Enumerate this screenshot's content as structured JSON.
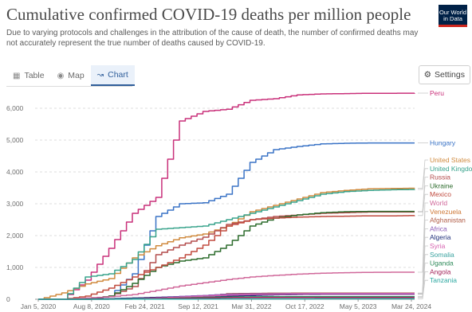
{
  "header": {
    "title": "Cumulative confirmed COVID-19 deaths per million people",
    "subtitle": "Due to varying protocols and challenges in the attribution of the cause of death, the number of confirmed deaths may not accurately represent the true number of deaths caused by COVID-19.",
    "logo": "Our World in Data"
  },
  "tabs": [
    {
      "label": "Table",
      "icon": "table-icon",
      "active": false
    },
    {
      "label": "Map",
      "icon": "globe-icon",
      "active": false
    },
    {
      "label": "Chart",
      "icon": "line-chart-icon",
      "active": true
    }
  ],
  "settings_label": "Settings",
  "chart_data": {
    "type": "line",
    "x_ticks": [
      "Jan 5, 2020",
      "Aug 8, 2020",
      "Feb 24, 2021",
      "Sep 12, 2021",
      "Mar 31, 2022",
      "Oct 17, 2022",
      "May 5, 2023",
      "Mar 24, 2024"
    ],
    "y_ticks": [
      0,
      1000,
      2000,
      3000,
      4000,
      5000,
      6000
    ],
    "ylim": [
      0,
      6600
    ],
    "grid": "horizontal dashed",
    "legend": "right, inline labels",
    "series": [
      {
        "name": "Peru",
        "color": "#c9307a",
        "values": [
          0,
          0,
          600,
          1600,
          2700,
          3200,
          5600,
          5900,
          5970,
          6250,
          6300,
          6420,
          6450,
          6460,
          6470,
          6470,
          6475
        ]
      },
      {
        "name": "Hungary",
        "color": "#3a73c6",
        "values": [
          0,
          0,
          0,
          100,
          800,
          2600,
          3000,
          3030,
          3300,
          4300,
          4700,
          4800,
          4880,
          4900,
          4910,
          4910,
          4910
        ]
      },
      {
        "name": "United States",
        "color": "#d08a3e",
        "values": [
          0,
          200,
          480,
          650,
          1300,
          1680,
          1930,
          2050,
          2300,
          2750,
          2950,
          3150,
          3350,
          3420,
          3470,
          3480,
          3490
        ]
      },
      {
        "name": "United Kingdom",
        "color": "#38a38c",
        "values": [
          0,
          0,
          700,
          800,
          1250,
          2200,
          2250,
          2300,
          2500,
          2700,
          2900,
          3100,
          3300,
          3380,
          3420,
          3440,
          3450
        ]
      },
      {
        "name": "Russia",
        "color": "#b34d4d",
        "values": [
          0,
          0,
          0,
          100,
          400,
          1400,
          1700,
          1950,
          2350,
          2500,
          2600,
          2650,
          2700,
          2720,
          2740,
          2740,
          2740
        ]
      },
      {
        "name": "Ukraine",
        "color": "#2c6b2c",
        "values": [
          0,
          0,
          0,
          100,
          500,
          1000,
          1200,
          1300,
          1700,
          2300,
          2550,
          2650,
          2720,
          2750,
          2760,
          2760,
          2760
        ]
      },
      {
        "name": "Mexico",
        "color": "#c04a3e",
        "values": [
          0,
          0,
          100,
          350,
          700,
          1000,
          1300,
          1700,
          2300,
          2500,
          2550,
          2580,
          2600,
          2610,
          2620,
          2620,
          2630
        ]
      },
      {
        "name": "World",
        "color": "#d0689a",
        "values": [
          0,
          0,
          40,
          80,
          150,
          280,
          420,
          520,
          620,
          700,
          750,
          790,
          820,
          835,
          845,
          850,
          850
        ]
      },
      {
        "name": "Venezuela",
        "color": "#cf7a3a",
        "values": [
          0,
          0,
          5,
          10,
          20,
          40,
          60,
          100,
          150,
          165,
          175,
          180,
          185,
          185,
          185,
          185,
          185
        ]
      },
      {
        "name": "Afghanistan",
        "color": "#b05c46",
        "values": [
          0,
          0,
          10,
          15,
          25,
          35,
          45,
          95,
          175,
          185,
          190,
          192,
          195,
          195,
          195,
          195,
          195
        ]
      },
      {
        "name": "Africa",
        "color": "#8a5ab6",
        "values": [
          0,
          0,
          5,
          10,
          30,
          60,
          90,
          120,
          160,
          170,
          175,
          178,
          180,
          180,
          180,
          180,
          180
        ]
      },
      {
        "name": "Algeria",
        "color": "#1f2f7a",
        "values": [
          0,
          0,
          10,
          20,
          40,
          60,
          70,
          80,
          100,
          120,
          140,
          150,
          155,
          155,
          155,
          155,
          155
        ]
      },
      {
        "name": "Syria",
        "color": "#d55fae",
        "values": [
          0,
          0,
          0,
          5,
          15,
          40,
          70,
          100,
          130,
          150,
          160,
          165,
          170,
          170,
          170,
          170,
          170
        ]
      },
      {
        "name": "Somalia",
        "color": "#3aa3a0",
        "values": [
          0,
          0,
          5,
          10,
          15,
          20,
          40,
          60,
          70,
          75,
          78,
          80,
          80,
          80,
          80,
          80,
          80
        ]
      },
      {
        "name": "Uganda",
        "color": "#2f8a5a",
        "values": [
          0,
          0,
          0,
          5,
          10,
          20,
          40,
          60,
          70,
          75,
          78,
          80,
          80,
          80,
          80,
          80,
          80
        ]
      },
      {
        "name": "Angola",
        "color": "#a3245a",
        "values": [
          0,
          0,
          0,
          5,
          10,
          20,
          30,
          40,
          50,
          55,
          56,
          57,
          57,
          57,
          57,
          57,
          57
        ]
      },
      {
        "name": "Tanzania",
        "color": "#2aa7a0",
        "values": [
          0,
          0,
          0,
          0,
          5,
          5,
          5,
          10,
          12,
          13,
          13,
          13,
          14,
          14,
          14,
          14,
          14
        ]
      }
    ]
  }
}
